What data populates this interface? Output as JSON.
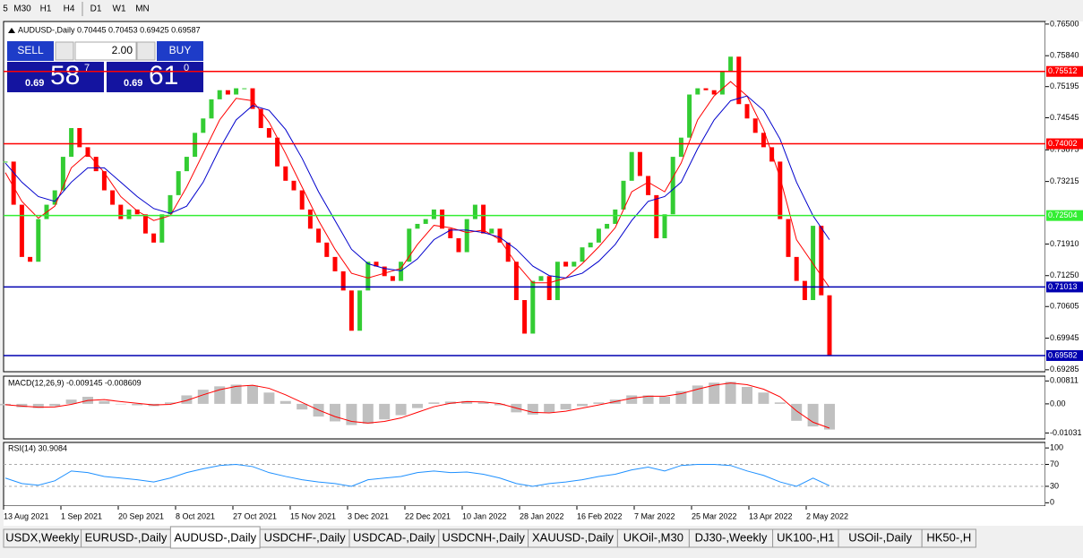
{
  "toolbar": {
    "buttons": [
      "5",
      "M30",
      "H1",
      "H4",
      "D1",
      "W1",
      "MN"
    ]
  },
  "chart": {
    "header": "AUDUSD-,Daily  0.70445 0.70453 0.69425 0.69587",
    "trade": {
      "sell": "SELL",
      "lots": "2.00",
      "buy": "BUY",
      "sell_price": {
        "big": "0.69",
        "main": "58",
        "small": "7"
      },
      "buy_price": {
        "big": "0.69",
        "main": "61",
        "small": "0"
      }
    },
    "ylim": [
      0.69245,
      0.76554
    ],
    "yticks": [
      {
        "value": 0.765,
        "label": "0.76500"
      },
      {
        "value": 0.7584,
        "label": "0.75840"
      },
      {
        "value": 0.75195,
        "label": "0.75195"
      },
      {
        "value": 0.74545,
        "label": "0.74545"
      },
      {
        "value": 0.73875,
        "label": "0.73875"
      },
      {
        "value": 0.73215,
        "label": "0.73215"
      },
      {
        "value": 0.7191,
        "label": "0.71910"
      },
      {
        "value": 0.7125,
        "label": "0.71250"
      },
      {
        "value": 0.70605,
        "label": "0.70605"
      },
      {
        "value": 0.69945,
        "label": "0.69945"
      },
      {
        "value": 0.69285,
        "label": "0.69285"
      }
    ],
    "levels": [
      {
        "value": 0.75512,
        "label": "0.75512",
        "color": "#ff0000"
      },
      {
        "value": 0.74002,
        "label": "0.74002",
        "color": "#ff0000"
      },
      {
        "value": 0.72504,
        "label": "0.72504",
        "color": "#33ee33"
      },
      {
        "value": 0.71013,
        "label": "0.71013",
        "color": "#0000b0"
      },
      {
        "value": 0.69582,
        "label": "0.69582",
        "color": "#0000b0"
      }
    ],
    "candles": {
      "up_color": "#33cc33",
      "down_color": "#ff0000",
      "closes": [
        0.7363,
        0.7273,
        0.7164,
        0.7154,
        0.7243,
        0.7273,
        0.7303,
        0.7373,
        0.7433,
        0.7393,
        0.7373,
        0.7343,
        0.7303,
        0.7273,
        0.7243,
        0.7263,
        0.7253,
        0.7213,
        0.7194,
        0.7253,
        0.7293,
        0.7343,
        0.7373,
        0.7423,
        0.7453,
        0.7493,
        0.7512,
        0.7503,
        0.7516,
        0.7516,
        0.7473,
        0.7433,
        0.7413,
        0.7353,
        0.7323,
        0.7303,
        0.7263,
        0.7223,
        0.7194,
        0.7164,
        0.7134,
        0.7094,
        0.701,
        0.7094,
        0.7154,
        0.7144,
        0.7124,
        0.7114,
        0.7154,
        0.7223,
        0.7233,
        0.7243,
        0.7263,
        0.7223,
        0.7203,
        0.7174,
        0.7243,
        0.7273,
        0.7213,
        0.7223,
        0.7194,
        0.7154,
        0.7074,
        0.7004,
        0.7114,
        0.7124,
        0.7074,
        0.7154,
        0.7144,
        0.7154,
        0.7184,
        0.7194,
        0.7223,
        0.7233,
        0.7263,
        0.7323,
        0.7383,
        0.7333,
        0.7293,
        0.7203,
        0.7253,
        0.7373,
        0.7413,
        0.7503,
        0.7516,
        0.7512,
        0.7503,
        0.7552,
        0.7582,
        0.7483,
        0.7453,
        0.7423,
        0.7393,
        0.7363,
        0.7243,
        0.7164,
        0.7114,
        0.7074,
        0.7229,
        0.7084,
        0.6959
      ]
    },
    "ma_fast": {
      "color": "#ff0000",
      "values": [
        0.734,
        0.728,
        0.7245,
        0.727,
        0.735,
        0.738,
        0.734,
        0.729,
        0.726,
        0.724,
        0.725,
        0.731,
        0.738,
        0.745,
        0.7495,
        0.749,
        0.7445,
        0.738,
        0.731,
        0.724,
        0.718,
        0.713,
        0.712,
        0.713,
        0.714,
        0.719,
        0.723,
        0.7225,
        0.7215,
        0.722,
        0.72,
        0.715,
        0.711,
        0.711,
        0.712,
        0.715,
        0.7185,
        0.7225,
        0.73,
        0.732,
        0.73,
        0.736,
        0.745,
        0.75,
        0.753,
        0.75,
        0.743,
        0.733,
        0.72,
        0.715,
        0.71
      ]
    },
    "ma_slow": {
      "color": "#0000cc",
      "values": [
        0.736,
        0.732,
        0.729,
        0.728,
        0.732,
        0.735,
        0.735,
        0.732,
        0.729,
        0.7265,
        0.7255,
        0.727,
        0.732,
        0.739,
        0.745,
        0.748,
        0.747,
        0.743,
        0.737,
        0.73,
        0.724,
        0.718,
        0.715,
        0.714,
        0.7135,
        0.716,
        0.72,
        0.722,
        0.722,
        0.7215,
        0.7205,
        0.718,
        0.7145,
        0.7125,
        0.712,
        0.713,
        0.7155,
        0.719,
        0.724,
        0.728,
        0.729,
        0.732,
        0.739,
        0.745,
        0.749,
        0.75,
        0.747,
        0.741,
        0.732,
        0.725,
        0.72
      ]
    },
    "macd": {
      "label": "MACD(12,26,9) -0.009145 -0.008609",
      "ylim": [
        -0.0124,
        0.0098
      ],
      "yticks": [
        {
          "value": 0.00811,
          "label": "0.00811"
        },
        {
          "value": 0,
          "label": "0.00"
        },
        {
          "value": -0.01031,
          "label": "-0.01031"
        }
      ],
      "hist_color": "#c0c0c0",
      "signal_color": "#ff0000",
      "hist": [
        -0.0005,
        -0.0012,
        -0.0015,
        -0.0008,
        0.0015,
        0.0025,
        0.001,
        0,
        -0.0005,
        -0.0008,
        0.0005,
        0.003,
        0.005,
        0.0062,
        0.0068,
        0.0065,
        0.004,
        0.001,
        -0.002,
        -0.0045,
        -0.0062,
        -0.0075,
        -0.007,
        -0.0055,
        -0.004,
        -0.0015,
        0.0005,
        0.0008,
        0.001,
        0.0005,
        -0.0005,
        -0.003,
        -0.0038,
        -0.003,
        -0.002,
        -0.0008,
        0.0005,
        0.0015,
        0.003,
        0.003,
        0.0025,
        0.0045,
        0.0065,
        0.0075,
        0.0078,
        0.006,
        0.004,
        0.0005,
        -0.006,
        -0.008,
        -0.0091
      ],
      "signal": [
        -0.0003,
        -0.0008,
        -0.0012,
        -0.0011,
        -0.0002,
        0.0012,
        0.0015,
        0.0008,
        0.0002,
        -0.0004,
        -0.0002,
        0.0012,
        0.0032,
        0.005,
        0.0062,
        0.0066,
        0.0055,
        0.0032,
        0.0005,
        -0.0022,
        -0.0045,
        -0.0062,
        -0.0068,
        -0.0062,
        -0.005,
        -0.003,
        -0.001,
        0.0002,
        0.0008,
        0.0007,
        0.0001,
        -0.0015,
        -0.003,
        -0.0032,
        -0.0026,
        -0.0015,
        -0.0004,
        0.0008,
        0.002,
        0.0027,
        0.0027,
        0.0036,
        0.0052,
        0.0066,
        0.0074,
        0.0068,
        0.0052,
        0.0025,
        -0.0025,
        -0.0065,
        -0.0086
      ]
    },
    "rsi": {
      "label": "RSI(14) 30.9084",
      "ylim": [
        -6,
        110
      ],
      "yticks": [
        100,
        70,
        30,
        0
      ],
      "dashed": [
        70,
        30
      ],
      "color": "#1e90ff",
      "values": [
        45,
        35,
        32,
        40,
        58,
        55,
        48,
        45,
        42,
        38,
        45,
        55,
        62,
        68,
        70,
        66,
        55,
        48,
        42,
        38,
        35,
        30,
        42,
        45,
        48,
        55,
        58,
        55,
        56,
        52,
        45,
        35,
        30,
        35,
        38,
        42,
        48,
        52,
        60,
        65,
        58,
        68,
        70,
        70,
        68,
        58,
        50,
        38,
        30,
        45,
        31
      ]
    },
    "dates": [
      "13 Aug 2021",
      "1 Sep 2021",
      "20 Sep 2021",
      "8 Oct 2021",
      "27 Oct 2021",
      "15 Nov 2021",
      "3 Dec 2021",
      "22 Dec 2021",
      "10 Jan 2022",
      "28 Jan 2022",
      "16 Feb 2022",
      "7 Mar 2022",
      "25 Mar 2022",
      "13 Apr 2022",
      "2 May 2022"
    ]
  },
  "tabs": {
    "items": [
      "USDX,Weekly",
      "EURUSD-,Daily",
      "AUDUSD-,Daily",
      "USDCHF-,Daily",
      "USDCAD-,Daily",
      "USDCNH-,Daily",
      "XAUUSD-,Daily",
      "UKOil-,M30",
      "DJ30-,Weekly",
      "UK100-,H1",
      "USOil-,Daily",
      "HK50-,H"
    ],
    "active": 2
  }
}
